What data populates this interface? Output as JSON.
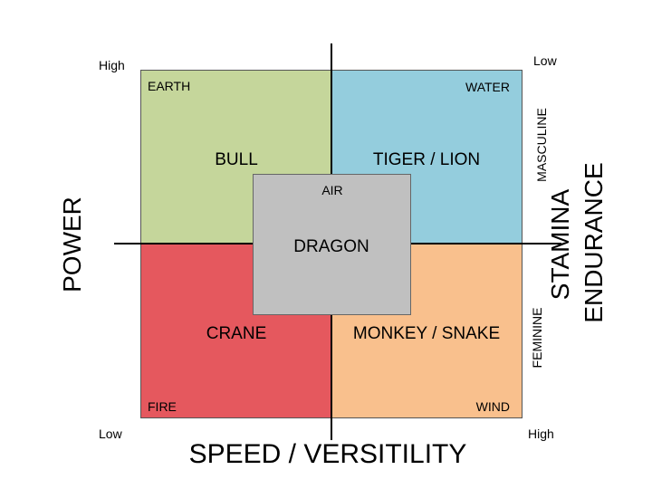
{
  "axes": {
    "x_title": "SPEED / VERSITILITY",
    "y_title": "POWER",
    "right_title_line1": "STAMINA",
    "right_title_line2": "ENDURANCE",
    "top_left": "High",
    "bottom_left": "Low",
    "top_right": "Low",
    "bottom_right": "High",
    "right_upper": "MASCULINE",
    "right_lower": "FEMININE"
  },
  "quadrants": {
    "top_left": {
      "element": "EARTH",
      "animal": "BULL",
      "color": "#c5d69b"
    },
    "top_right": {
      "element": "WATER",
      "animal": "TIGER / LION",
      "color": "#94cddd"
    },
    "bottom_left": {
      "element": "FIRE",
      "animal": "CRANE",
      "color": "#e5585e"
    },
    "bottom_right": {
      "element": "WIND",
      "animal": "MONKEY / SNAKE",
      "color": "#f9c08d"
    }
  },
  "center": {
    "element": "AIR",
    "animal": "DRAGON",
    "color": "#c0c0c0"
  }
}
